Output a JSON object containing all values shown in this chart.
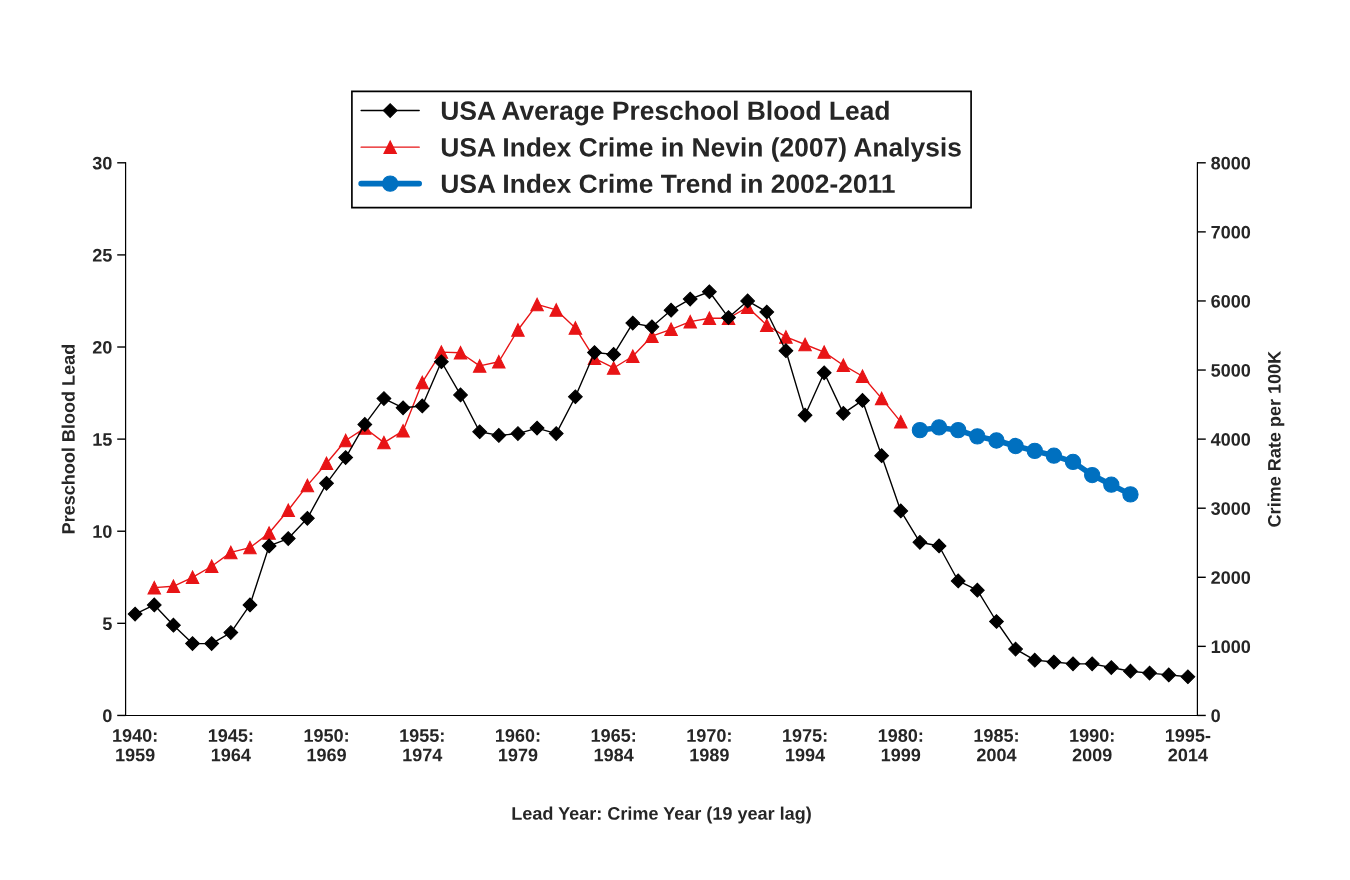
{
  "chart_data": {
    "type": "line",
    "xlabel": "Lead Year: Crime Year (19 year lag)",
    "ylabel": "Preschool Blood Lead",
    "y2label": "Crime Rate per 100K",
    "categories": [
      "1940:\n1959",
      null,
      null,
      null,
      null,
      "1945:\n1964",
      null,
      null,
      null,
      null,
      "1950:\n1969",
      null,
      null,
      null,
      null,
      "1955:\n1974",
      null,
      null,
      null,
      null,
      "1960:\n1979",
      null,
      null,
      null,
      null,
      "1965:\n1984",
      null,
      null,
      null,
      null,
      "1970:\n1989",
      null,
      null,
      null,
      null,
      "1975:\n1994",
      null,
      null,
      null,
      null,
      "1980:\n1999",
      null,
      null,
      null,
      null,
      "1985:\n2004",
      null,
      null,
      null,
      null,
      "1990:\n2009",
      null,
      null,
      null,
      null,
      "1995-\n2014"
    ],
    "ylim": [
      0,
      30
    ],
    "yticks": [
      0,
      5,
      10,
      15,
      20,
      25,
      30
    ],
    "y2lim": [
      0,
      8000
    ],
    "y2ticks": [
      0,
      1000,
      2000,
      3000,
      4000,
      5000,
      6000,
      7000,
      8000
    ],
    "grid": false,
    "legend": "top",
    "series": [
      {
        "name": "USA Average Preschool Blood Lead",
        "color": "#000000",
        "marker": "diamond",
        "values": [
          5.5,
          6.0,
          4.9,
          3.9,
          3.9,
          4.5,
          6.0,
          9.2,
          9.6,
          10.7,
          12.6,
          14.0,
          15.8,
          17.2,
          16.7,
          16.8,
          19.2,
          17.4,
          15.4,
          15.2,
          15.3,
          15.6,
          15.3,
          17.3,
          19.7,
          19.6,
          21.3,
          21.1,
          22.0,
          22.6,
          23.0,
          21.6,
          22.5,
          21.9,
          19.8,
          16.3,
          18.6,
          16.4,
          17.1,
          14.1,
          11.1,
          9.4,
          9.2,
          7.3,
          6.8,
          5.1,
          3.6,
          3.0,
          2.9,
          2.8,
          2.8,
          2.6,
          2.4,
          2.3,
          2.2,
          2.1
        ]
      },
      {
        "name": "USA Index Crime in Nevin (2007) Analysis",
        "color": "#e81416",
        "marker": "triangle",
        "axis": "y2",
        "values": [
          null,
          1850,
          1870,
          2000,
          2160,
          2360,
          2430,
          2640,
          2970,
          3330,
          3650,
          3980,
          4160,
          3950,
          4120,
          4820,
          5260,
          5250,
          5060,
          5120,
          5580,
          5950,
          5870,
          5610,
          5170,
          5030,
          5200,
          5490,
          5590,
          5700,
          5750,
          5750,
          5910,
          5650,
          5480,
          5370,
          5260,
          5070,
          4910,
          4590,
          4250,
          null,
          null,
          null,
          null,
          null,
          null,
          null,
          null,
          null,
          null,
          null,
          null,
          null,
          null,
          null
        ]
      },
      {
        "name": "USA Index Crime Trend in 2002-2011",
        "color": "#0070c0",
        "marker": "circle",
        "axis": "y2",
        "values": [
          null,
          null,
          null,
          null,
          null,
          null,
          null,
          null,
          null,
          null,
          null,
          null,
          null,
          null,
          null,
          null,
          null,
          null,
          null,
          null,
          null,
          null,
          null,
          null,
          null,
          null,
          null,
          null,
          null,
          null,
          null,
          null,
          null,
          null,
          null,
          null,
          null,
          null,
          null,
          null,
          null,
          4130,
          4170,
          4130,
          4040,
          3980,
          3900,
          3830,
          3760,
          3670,
          3480,
          3340,
          3200,
          null,
          null,
          null
        ]
      }
    ]
  }
}
